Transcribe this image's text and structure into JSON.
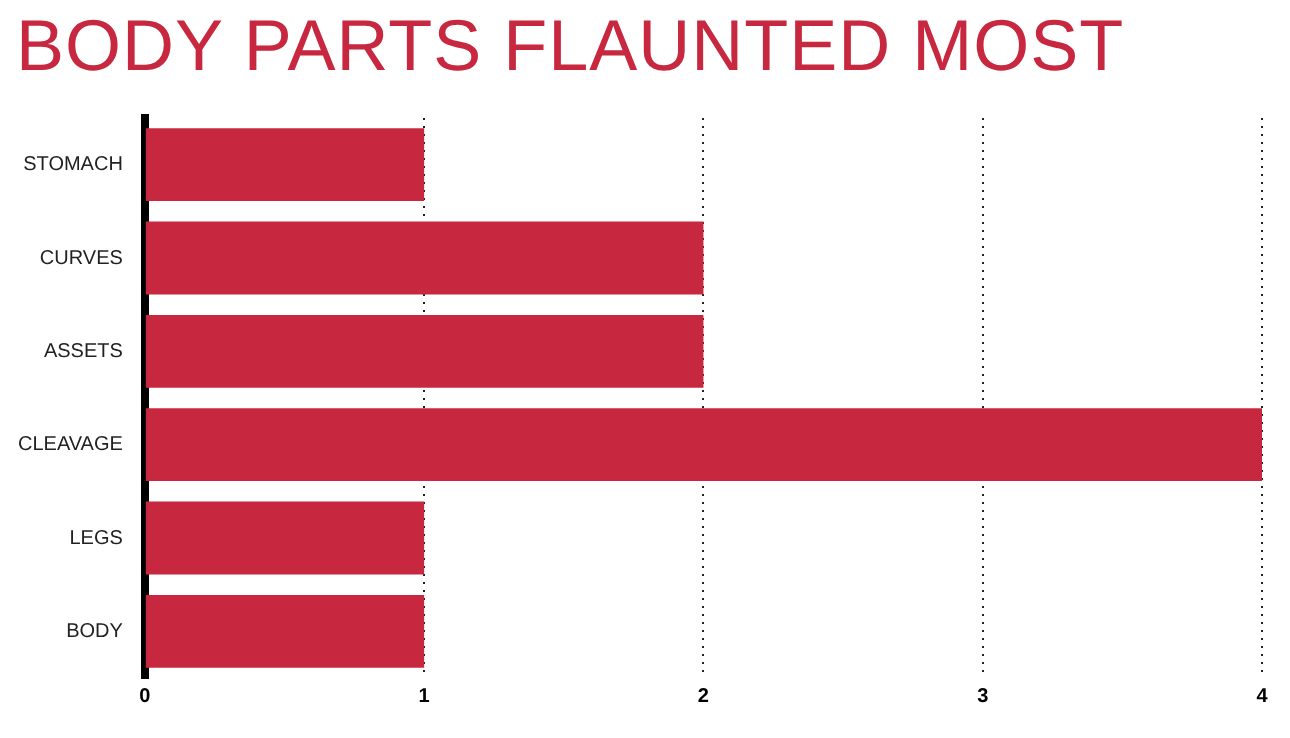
{
  "chart_data": {
    "type": "bar",
    "orientation": "horizontal",
    "title": "BODY PARTS FLAUNTED MOST",
    "categories": [
      "STOMACH",
      "CURVES",
      "ASSETS",
      "CLEAVAGE",
      "LEGS",
      "BODY"
    ],
    "values": [
      1,
      2,
      2,
      4,
      1,
      1
    ],
    "color": "#c8283f",
    "xlim": [
      0,
      4
    ],
    "xticks": [
      0,
      1,
      2,
      3,
      4
    ],
    "grid": "x",
    "legend": false
  }
}
